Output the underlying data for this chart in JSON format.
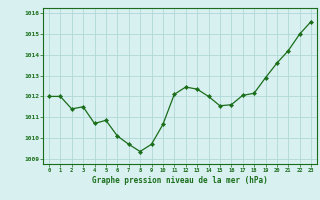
{
  "x": [
    0,
    1,
    2,
    3,
    4,
    5,
    6,
    7,
    8,
    9,
    10,
    11,
    12,
    13,
    14,
    15,
    16,
    17,
    18,
    19,
    20,
    21,
    22,
    23
  ],
  "y": [
    1012.0,
    1012.0,
    1011.4,
    1011.5,
    1010.7,
    1010.85,
    1010.1,
    1009.7,
    1009.35,
    1009.7,
    1010.65,
    1012.1,
    1012.45,
    1012.35,
    1012.0,
    1011.55,
    1011.6,
    1012.05,
    1012.15,
    1012.9,
    1013.6,
    1014.2,
    1015.0,
    1015.6
  ],
  "line_color": "#1a6e1a",
  "marker": "D",
  "marker_size": 2.2,
  "bg_color": "#d8f0f0",
  "grid_color": "#b0d8d8",
  "xlabel": "Graphe pression niveau de la mer (hPa)",
  "xlabel_color": "#1a6e1a",
  "tick_color": "#1a6e1a",
  "ylim": [
    1008.75,
    1016.25
  ],
  "xlim": [
    -0.5,
    23.5
  ],
  "yticks": [
    1009,
    1010,
    1011,
    1012,
    1013,
    1014,
    1015,
    1016
  ],
  "xticks": [
    0,
    1,
    2,
    3,
    4,
    5,
    6,
    7,
    8,
    9,
    10,
    11,
    12,
    13,
    14,
    15,
    16,
    17,
    18,
    19,
    20,
    21,
    22,
    23
  ],
  "spine_color": "#1a6e1a",
  "linewidth": 0.9
}
